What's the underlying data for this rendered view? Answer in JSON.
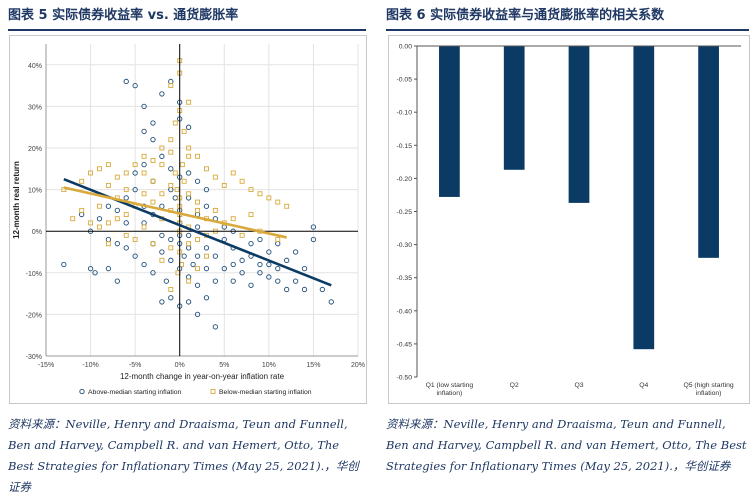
{
  "left": {
    "fig_title": "图表 5   实际债券收益率 vs. 通货膨胀率",
    "source_label": "资料来源：",
    "source_text": "Neville, Henry and Draaisma, Teun and Funnell, Ben and Harvey, Campbell R. and van Hemert, Otto, The Best Strategies for Inflationary Times (May 25, 2021).，华创证券"
  },
  "right": {
    "fig_title": "图表 6   实际债券收益率与通货膨胀率的相关系数",
    "source_label": "资料来源：",
    "source_text": "Neville, Henry and Draaisma, Teun and Funnell, Ben and Harvey, Campbell R. and van Hemert, Otto, The Best Strategies for Inflationary Times (May 25, 2021).，华创证券"
  },
  "colors": {
    "navy": "#1f3864",
    "dark_blue": "#0b3a64",
    "gold": "#d9a93a",
    "axis": "#000000"
  },
  "chart_data": [
    {
      "type": "scatter",
      "xlabel": "12-month change in year-on-year inflation rate",
      "ylabel": "12-month real return",
      "xlim": [
        -15,
        20
      ],
      "ylim": [
        -30,
        45
      ],
      "x_ticks": [
        -15,
        -10,
        -5,
        0,
        5,
        10,
        15,
        20
      ],
      "x_tick_labels": [
        "-15%",
        "-10%",
        "-5%",
        "0%",
        "5%",
        "10%",
        "15%",
        "20%"
      ],
      "y_ticks": [
        -30,
        -20,
        -10,
        0,
        10,
        20,
        30,
        40
      ],
      "y_tick_labels": [
        "-30%",
        "-20%",
        "-10%",
        "0%",
        "10%",
        "20%",
        "30%",
        "40%"
      ],
      "series": [
        {
          "name": "Above-median starting inflation",
          "marker": "circle",
          "color": "#1f4e79",
          "trend": [
            [
              -13,
              12.5
            ],
            [
              17,
              -13
            ]
          ],
          "points": [
            [
              -13,
              -8
            ],
            [
              -10,
              -9
            ],
            [
              -9.5,
              -10
            ],
            [
              -8,
              -9
            ],
            [
              -7,
              -12
            ],
            [
              -6,
              36
            ],
            [
              -5,
              35
            ],
            [
              -4,
              30
            ],
            [
              -4,
              24
            ],
            [
              -3,
              22
            ],
            [
              -3,
              26
            ],
            [
              -2,
              33
            ],
            [
              -1,
              36
            ],
            [
              0,
              31
            ],
            [
              0,
              27
            ],
            [
              1,
              25
            ],
            [
              -6,
              -4
            ],
            [
              -5,
              -6
            ],
            [
              -4,
              -8
            ],
            [
              -3,
              -10
            ],
            [
              -2,
              -17
            ],
            [
              -1,
              -16
            ],
            [
              0,
              -18
            ],
            [
              1,
              -17
            ],
            [
              2,
              -20
            ],
            [
              3,
              -16
            ],
            [
              4,
              -23
            ],
            [
              5,
              -9
            ],
            [
              6,
              -12
            ],
            [
              7,
              -10
            ],
            [
              8,
              -13
            ],
            [
              9,
              -10
            ],
            [
              10,
              -11
            ],
            [
              11,
              -9
            ],
            [
              12,
              -14
            ],
            [
              13,
              -12
            ],
            [
              14,
              -14
            ],
            [
              15,
              1
            ],
            [
              15,
              -2
            ],
            [
              16,
              -14
            ],
            [
              17,
              -17
            ],
            [
              14,
              -9
            ],
            [
              12,
              -7
            ],
            [
              10,
              -5
            ],
            [
              8,
              -3
            ],
            [
              6,
              -4
            ],
            [
              4,
              -6
            ],
            [
              2,
              -6
            ],
            [
              1,
              -4
            ],
            [
              3,
              -9
            ],
            [
              5,
              -2
            ],
            [
              7,
              -7
            ],
            [
              9,
              -2
            ],
            [
              11,
              -3
            ],
            [
              13,
              -5
            ],
            [
              2,
              4
            ],
            [
              3,
              6
            ],
            [
              1,
              8
            ],
            [
              -1,
              10
            ],
            [
              -2,
              6
            ],
            [
              -3,
              4
            ],
            [
              -4,
              2
            ],
            [
              -6,
              2
            ],
            [
              -7,
              5
            ],
            [
              -8,
              6
            ],
            [
              -9,
              3
            ],
            [
              -10,
              0
            ],
            [
              -11,
              4
            ],
            [
              -5,
              14
            ],
            [
              -4,
              16
            ],
            [
              -3,
              12
            ],
            [
              -2,
              18
            ],
            [
              -1,
              15
            ],
            [
              0,
              13
            ],
            [
              1,
              14
            ],
            [
              2,
              12
            ],
            [
              3,
              10
            ],
            [
              4,
              3
            ],
            [
              5,
              1
            ],
            [
              6,
              0
            ],
            [
              -8,
              -2
            ],
            [
              -7,
              -3
            ],
            [
              -3,
              -3
            ],
            [
              -2,
              -5
            ],
            [
              -1,
              -7
            ],
            [
              0,
              -9
            ],
            [
              1,
              -11
            ],
            [
              2,
              -13
            ],
            [
              3,
              -4
            ],
            [
              4,
              -12
            ],
            [
              6,
              -8
            ],
            [
              8,
              -6
            ],
            [
              9,
              -8
            ],
            [
              10,
              -8
            ],
            [
              11,
              -12
            ],
            [
              -6,
              8
            ],
            [
              -5,
              10
            ],
            [
              -4,
              6
            ],
            [
              -2,
              -1
            ],
            [
              -1,
              -2
            ],
            [
              0,
              -3
            ],
            [
              1,
              -1
            ],
            [
              2,
              1
            ],
            [
              0,
              5
            ],
            [
              0,
              2
            ],
            [
              0,
              -1
            ],
            [
              -0.5,
              8
            ],
            [
              0.5,
              -6
            ],
            [
              1.5,
              -8
            ],
            [
              -1.5,
              -12
            ]
          ]
        },
        {
          "name": "Below-median starting inflation",
          "marker": "square",
          "color": "#d9a93a",
          "trend": [
            [
              -13,
              10.5
            ],
            [
              12,
              -1.5
            ]
          ],
          "points": [
            [
              -13,
              10
            ],
            [
              -11,
              12
            ],
            [
              -10,
              14
            ],
            [
              -9,
              15
            ],
            [
              -8,
              16
            ],
            [
              -7,
              13
            ],
            [
              -6,
              14
            ],
            [
              -5,
              16
            ],
            [
              -4,
              18
            ],
            [
              -3,
              17
            ],
            [
              -2,
              20
            ],
            [
              -1,
              22
            ],
            [
              0,
              41
            ],
            [
              0,
              38
            ],
            [
              -1,
              35
            ],
            [
              1,
              31
            ],
            [
              0,
              29
            ],
            [
              -0.5,
              26
            ],
            [
              0.5,
              24
            ],
            [
              1,
              20
            ],
            [
              2,
              18
            ],
            [
              3,
              15
            ],
            [
              4,
              13
            ],
            [
              5,
              11
            ],
            [
              6,
              14
            ],
            [
              7,
              12
            ],
            [
              8,
              10
            ],
            [
              9,
              9
            ],
            [
              10,
              8
            ],
            [
              11,
              7
            ],
            [
              12,
              6
            ],
            [
              8,
              4
            ],
            [
              6,
              3
            ],
            [
              4,
              5
            ],
            [
              2,
              7
            ],
            [
              1,
              9
            ],
            [
              -1,
              11
            ],
            [
              -2,
              9
            ],
            [
              -3,
              7
            ],
            [
              -4,
              9
            ],
            [
              -5,
              6
            ],
            [
              -6,
              4
            ],
            [
              -7,
              3
            ],
            [
              -8,
              2
            ],
            [
              -9,
              1
            ],
            [
              -10,
              2
            ],
            [
              -11,
              5
            ],
            [
              -12,
              3
            ],
            [
              -5,
              -2
            ],
            [
              -3,
              -3
            ],
            [
              -1,
              -4
            ],
            [
              0,
              -5
            ],
            [
              1,
              -3
            ],
            [
              2,
              -2
            ],
            [
              3,
              -1
            ],
            [
              0,
              0
            ],
            [
              0,
              2
            ],
            [
              0,
              4
            ],
            [
              0,
              6
            ],
            [
              0,
              8
            ],
            [
              0.5,
              12
            ],
            [
              -0.5,
              14
            ],
            [
              0.3,
              16
            ],
            [
              -0.3,
              10
            ],
            [
              0.2,
              -8
            ],
            [
              -0.2,
              -10
            ],
            [
              1,
              -12
            ],
            [
              -1,
              -14
            ],
            [
              2,
              -9
            ],
            [
              3,
              -6
            ],
            [
              -2,
              -7
            ],
            [
              5,
              2
            ],
            [
              7,
              -1
            ],
            [
              9,
              0
            ],
            [
              11,
              -2
            ],
            [
              -6,
              -1
            ],
            [
              -8,
              -3
            ],
            [
              -4,
              1
            ],
            [
              -2,
              3
            ],
            [
              1,
              1
            ],
            [
              3,
              3
            ],
            [
              4,
              0
            ],
            [
              -1,
              5
            ],
            [
              2,
              5
            ],
            [
              -3,
              12
            ],
            [
              -4,
              14
            ],
            [
              -2,
              16
            ],
            [
              1,
              18
            ],
            [
              -1,
              19
            ],
            [
              -6,
              10
            ],
            [
              -7,
              8
            ],
            [
              -8,
              11
            ],
            [
              -9,
              6
            ]
          ]
        }
      ],
      "legend": [
        "Above-median starting inflation",
        "Below-median starting inflation"
      ],
      "legend_position": "bottom"
    },
    {
      "type": "bar",
      "categories": [
        "Q1 (low starting inflation)",
        "Q2",
        "Q3",
        "Q4",
        "Q5 (high starting inflation)"
      ],
      "category_lines": [
        [
          "Q1 (low starting",
          "inflation)"
        ],
        [
          "Q2"
        ],
        [
          "Q3"
        ],
        [
          "Q4"
        ],
        [
          "Q5 (high starting",
          "inflation)"
        ]
      ],
      "values": [
        -0.228,
        -0.187,
        -0.237,
        -0.458,
        -0.32
      ],
      "ylim": [
        -0.5,
        0
      ],
      "y_ticks": [
        0,
        -0.05,
        -0.1,
        -0.15,
        -0.2,
        -0.25,
        -0.3,
        -0.35,
        -0.4,
        -0.45,
        -0.5
      ],
      "y_tick_labels": [
        "0.00",
        "-0.05",
        "-0.10",
        "-0.15",
        "-0.20",
        "-0.25",
        "-0.30",
        "-0.35",
        "-0.40",
        "-0.45",
        "-0.50"
      ],
      "color": "#0b3a64"
    }
  ]
}
